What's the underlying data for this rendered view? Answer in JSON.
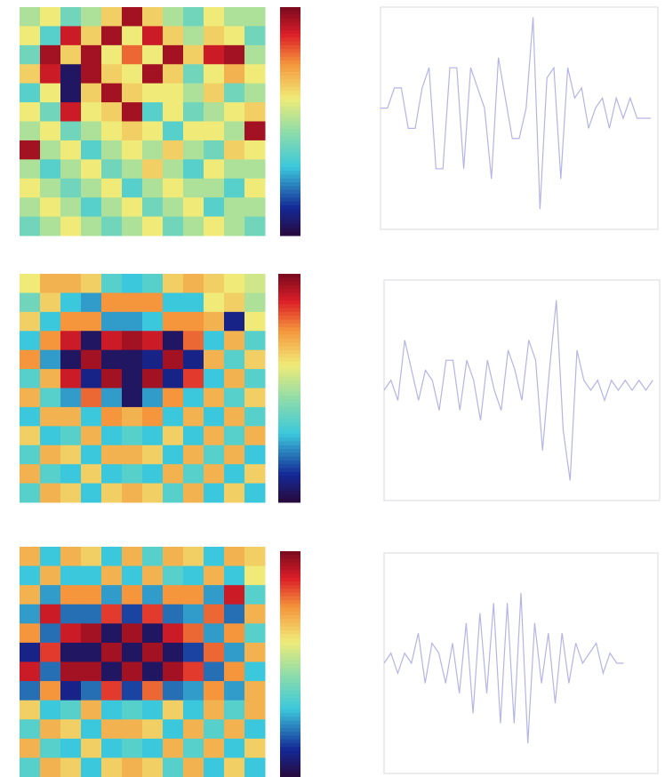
{
  "chart_data": [
    {
      "type": "heatmap",
      "zlim": [
        -1,
        1
      ],
      "values": [
        [
          0,
          0.2,
          -0.2,
          0,
          0.3,
          0.9,
          0.3,
          0,
          -0.2,
          0.2,
          0,
          0
        ],
        [
          0.2,
          -0.3,
          0.8,
          0.3,
          0.9,
          0.2,
          0.8,
          0.3,
          0,
          0.3,
          0.2,
          -0.2
        ],
        [
          -0.2,
          0.9,
          0.3,
          0.9,
          0.2,
          0.6,
          0.2,
          0.9,
          0.3,
          0.8,
          0.9,
          0
        ],
        [
          0.3,
          0.8,
          -0.9,
          0.9,
          0.3,
          0.2,
          0.9,
          0.3,
          -0.2,
          0.2,
          0.4,
          0.2
        ],
        [
          -0.3,
          0.2,
          -0.9,
          0.3,
          0.9,
          0.3,
          0.2,
          0.2,
          0,
          0.3,
          -0.2,
          0
        ],
        [
          0.2,
          -0.2,
          0.8,
          0.2,
          0.3,
          0.9,
          -0.3,
          0.2,
          -0.2,
          0,
          0.2,
          0.3
        ],
        [
          0,
          0.2,
          -0.2,
          0,
          0.2,
          0.3,
          0.2,
          -0.3,
          0.2,
          0.2,
          0,
          0.9
        ],
        [
          0.9,
          0,
          0.2,
          -0.3,
          0,
          0.2,
          0,
          0.3,
          0,
          -0.2,
          0.3,
          0.2
        ],
        [
          0,
          -0.3,
          0,
          0.2,
          -0.2,
          0,
          0.3,
          0,
          -0.3,
          0.2,
          0,
          0
        ],
        [
          0.2,
          0,
          -0.2,
          0,
          0.2,
          -0.3,
          0,
          0.2,
          0,
          0,
          -0.3,
          0.2
        ],
        [
          0,
          0.2,
          0,
          -0.3,
          0,
          0.2,
          -0.2,
          0,
          0.2,
          -0.3,
          0,
          0
        ],
        [
          -0.2,
          0,
          0.2,
          0,
          -0.2,
          0,
          0.2,
          -0.2,
          0,
          0.2,
          0,
          -0.2
        ]
      ]
    },
    {
      "type": "line",
      "color": "#b4b4e6",
      "xlim": [
        0,
        400
      ],
      "ylim": [
        -1.1,
        1.1
      ],
      "x": [
        0,
        10,
        20,
        30,
        40,
        50,
        60,
        70,
        80,
        90,
        100,
        110,
        120,
        130,
        140,
        150,
        160,
        170,
        180,
        190,
        200,
        210,
        220,
        230,
        240,
        250,
        260,
        270,
        280,
        290,
        300,
        310,
        320,
        330,
        340,
        350,
        360,
        370,
        380,
        390
      ],
      "values": [
        0.1,
        0.1,
        0.3,
        0.3,
        -0.1,
        -0.1,
        0.3,
        0.5,
        -0.5,
        -0.5,
        0.5,
        0.5,
        -0.5,
        0.5,
        0.3,
        0.1,
        -0.6,
        0.6,
        0.2,
        -0.2,
        -0.2,
        0.1,
        1.0,
        -0.9,
        0.4,
        0.5,
        -0.6,
        0.5,
        0.2,
        0.3,
        -0.1,
        0.1,
        0.2,
        -0.1,
        0.2,
        0.0,
        0.2,
        0.0,
        0.0,
        0.0
      ]
    },
    {
      "type": "heatmap",
      "zlim": [
        -1,
        1
      ],
      "values": [
        [
          0.2,
          0.4,
          0.4,
          0.3,
          -0.3,
          -0.4,
          -0.3,
          0.3,
          0.4,
          0.3,
          0.2,
          0.1
        ],
        [
          -0.2,
          0.3,
          -0.4,
          -0.5,
          0.5,
          0.5,
          0.5,
          -0.4,
          -0.4,
          0.2,
          0.3,
          0
        ],
        [
          0.3,
          -0.4,
          0.5,
          0.5,
          -0.5,
          -0.5,
          -0.4,
          0.5,
          0.5,
          0.4,
          -0.8,
          0.2
        ],
        [
          -0.4,
          0.5,
          0.8,
          -0.9,
          0.8,
          0.9,
          0.8,
          -0.9,
          0.6,
          -0.4,
          0.4,
          -0.3
        ],
        [
          0.5,
          -0.5,
          -0.9,
          0.9,
          -0.9,
          -0.9,
          -0.8,
          0.9,
          -0.8,
          0.4,
          -0.3,
          0.3
        ],
        [
          -0.3,
          0.4,
          0.8,
          -0.8,
          0.9,
          -0.9,
          0.9,
          -0.8,
          0.7,
          -0.4,
          0.4,
          -0.3
        ],
        [
          0.4,
          -0.3,
          -0.5,
          0.6,
          -0.5,
          -0.9,
          -0.5,
          0.5,
          -0.4,
          0.4,
          -0.3,
          0.3
        ],
        [
          -0.4,
          0.4,
          0.4,
          -0.4,
          0.5,
          0.4,
          0.5,
          -0.4,
          0.4,
          -0.4,
          0.4,
          -0.3
        ],
        [
          0.3,
          -0.4,
          -0.3,
          0.4,
          -0.4,
          -0.3,
          -0.4,
          0.3,
          -0.4,
          0.4,
          -0.3,
          0.4
        ],
        [
          -0.3,
          0.4,
          0.3,
          -0.4,
          0.4,
          0.4,
          0.3,
          -0.4,
          0.4,
          -0.3,
          0.4,
          -0.4
        ],
        [
          0.4,
          -0.3,
          -0.4,
          0.3,
          -0.4,
          -0.3,
          -0.4,
          0.4,
          -0.3,
          0.4,
          -0.4,
          0.3
        ],
        [
          -0.3,
          0.4,
          0.3,
          -0.4,
          0.3,
          0.4,
          0.3,
          -0.3,
          0.4,
          -0.4,
          0.3,
          -0.4
        ]
      ]
    },
    {
      "type": "line",
      "color": "#b4b4e6",
      "xlim": [
        0,
        400
      ],
      "ylim": [
        -1.1,
        1.1
      ],
      "x": [
        0,
        10,
        20,
        30,
        40,
        50,
        60,
        70,
        80,
        90,
        100,
        110,
        120,
        130,
        140,
        150,
        160,
        170,
        180,
        190,
        200,
        210,
        220,
        230,
        240,
        250,
        260,
        270,
        280,
        290,
        300,
        310,
        320,
        330,
        340,
        350,
        360,
        370,
        380,
        390
      ],
      "values": [
        0,
        0.1,
        -0.1,
        0.5,
        0.2,
        -0.1,
        0.2,
        0.1,
        -0.2,
        0.3,
        0.3,
        -0.2,
        0.3,
        0.1,
        -0.3,
        0.3,
        0.0,
        -0.2,
        0.4,
        0.2,
        -0.1,
        0.5,
        0.3,
        -0.6,
        0.2,
        0.9,
        -0.4,
        -0.9,
        0.4,
        0.1,
        0.0,
        0.1,
        -0.1,
        0.1,
        0.0,
        0.1,
        0.0,
        0.1,
        0.0,
        0.1
      ]
    },
    {
      "type": "heatmap",
      "zlim": [
        -1,
        1
      ],
      "values": [
        [
          0.4,
          -0.4,
          0.4,
          0.3,
          -0.4,
          0.4,
          -0.3,
          0.4,
          0.3,
          -0.4,
          0.4,
          0.3
        ],
        [
          -0.4,
          0.4,
          -0.4,
          -0.4,
          0.4,
          -0.4,
          0.4,
          -0.3,
          -0.4,
          0.4,
          -0.4,
          0.2
        ],
        [
          0.4,
          -0.5,
          0.5,
          0.5,
          -0.5,
          0.5,
          -0.5,
          0.5,
          0.5,
          -0.5,
          0.8,
          -0.3
        ],
        [
          -0.5,
          0.8,
          -0.6,
          -0.6,
          0.7,
          -0.7,
          0.7,
          -0.6,
          -0.5,
          0.6,
          -0.6,
          0.4
        ],
        [
          0.5,
          -0.6,
          0.8,
          0.9,
          -0.9,
          0.9,
          -0.9,
          0.8,
          0.6,
          -0.5,
          0.5,
          -0.3
        ],
        [
          -0.8,
          0.7,
          -0.9,
          -0.9,
          0.9,
          -0.9,
          0.9,
          -0.9,
          -0.7,
          0.6,
          -0.5,
          0.4
        ],
        [
          0.8,
          -0.6,
          0.9,
          0.9,
          -0.9,
          0.9,
          -0.9,
          0.9,
          0.7,
          -0.6,
          0.5,
          -0.4
        ],
        [
          -0.6,
          0.5,
          -0.8,
          -0.6,
          0.7,
          -0.7,
          0.6,
          -0.6,
          -0.5,
          0.5,
          -0.5,
          0.4
        ],
        [
          0.3,
          -0.4,
          -0.3,
          0.4,
          -0.4,
          -0.3,
          -0.4,
          0.3,
          -0.4,
          0.4,
          -0.3,
          0.4
        ],
        [
          -0.3,
          0.4,
          0.3,
          -0.4,
          0.4,
          0.4,
          0.3,
          -0.4,
          0.4,
          -0.3,
          0.4,
          -0.4
        ],
        [
          0.4,
          -0.3,
          -0.4,
          0.3,
          -0.4,
          -0.3,
          -0.4,
          0.4,
          -0.3,
          0.4,
          -0.4,
          0.3
        ],
        [
          -0.3,
          0.4,
          0.3,
          -0.4,
          0.3,
          0.4,
          0.3,
          -0.3,
          0.4,
          -0.4,
          0.3,
          -0.4
        ]
      ]
    },
    {
      "type": "line",
      "color": "#b4b4e6",
      "xlim": [
        0,
        400
      ],
      "ylim": [
        -1.1,
        1.1
      ],
      "x": [
        0,
        10,
        20,
        30,
        40,
        50,
        60,
        70,
        80,
        90,
        100,
        110,
        120,
        130,
        140,
        150,
        160,
        170,
        180,
        190,
        200,
        210,
        220,
        230,
        240,
        250,
        260,
        270,
        280,
        290,
        300,
        310,
        320,
        330,
        340,
        350
      ],
      "values": [
        0,
        0.1,
        -0.1,
        0.1,
        0.0,
        0.3,
        -0.2,
        0.2,
        0.1,
        -0.2,
        0.2,
        -0.3,
        0.4,
        -0.5,
        0.5,
        -0.3,
        0.6,
        -0.6,
        0.6,
        -0.6,
        0.7,
        -0.8,
        0.4,
        -0.2,
        0.3,
        -0.4,
        0.3,
        -0.2,
        0.2,
        0.0,
        0.1,
        0.2,
        -0.1,
        0.1,
        0.0,
        0.0
      ]
    }
  ]
}
